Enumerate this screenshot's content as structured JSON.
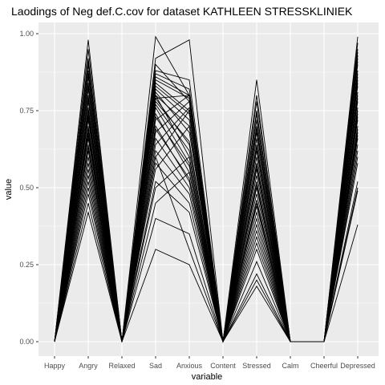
{
  "chart_data": {
    "type": "line",
    "title": "Laodings of Neg def.C.cov for dataset KATHLEEN STRESSKLINIEK",
    "xlabel": "variable",
    "ylabel": "value",
    "categories": [
      "Happy",
      "Angry",
      "Relaxed",
      "Sad",
      "Anxious",
      "Content",
      "Stressed",
      "Calm",
      "Cheerful",
      "Depressed"
    ],
    "ylim": [
      0,
      1
    ],
    "y_ticks": [
      0.0,
      0.25,
      0.5,
      0.75,
      1.0
    ],
    "y_tick_labels": [
      "0.00",
      "0.25",
      "0.50",
      "0.75",
      "1.00"
    ],
    "grid": true,
    "legend": "none",
    "colors": {
      "panel": "#ebebeb",
      "grid": "#ffffff",
      "line": "#000000",
      "tick_text": "#4d4d4d"
    },
    "series": [
      {
        "values": [
          0,
          0.98,
          0,
          0.99,
          0.8,
          0,
          0.85,
          0,
          0,
          0.99
        ]
      },
      {
        "values": [
          0,
          0.95,
          0,
          0.92,
          0.98,
          0,
          0.8,
          0,
          0,
          0.97
        ]
      },
      {
        "values": [
          0,
          0.92,
          0,
          0.88,
          0.85,
          0,
          0.75,
          0,
          0,
          0.95
        ]
      },
      {
        "values": [
          0,
          0.9,
          0,
          0.86,
          0.8,
          0,
          0.72,
          0,
          0,
          0.93
        ]
      },
      {
        "values": [
          0,
          0.88,
          0,
          0.9,
          0.78,
          0,
          0.7,
          0,
          0,
          0.92
        ]
      },
      {
        "values": [
          0,
          0.86,
          0,
          0.84,
          0.75,
          0,
          0.68,
          0,
          0,
          0.9
        ]
      },
      {
        "values": [
          0,
          0.84,
          0,
          0.82,
          0.72,
          0,
          0.66,
          0,
          0,
          0.88
        ]
      },
      {
        "values": [
          0,
          0.82,
          0,
          0.8,
          0.7,
          0,
          0.64,
          0,
          0,
          0.86
        ]
      },
      {
        "values": [
          0,
          0.8,
          0,
          0.79,
          0.8,
          0,
          0.62,
          0,
          0,
          0.85
        ]
      },
      {
        "values": [
          0,
          0.78,
          0,
          0.78,
          0.65,
          0,
          0.6,
          0,
          0,
          0.83
        ]
      },
      {
        "values": [
          0,
          0.76,
          0,
          0.77,
          0.62,
          0,
          0.58,
          0,
          0,
          0.81
        ]
      },
      {
        "values": [
          0,
          0.75,
          0,
          0.8,
          0.6,
          0,
          0.56,
          0,
          0,
          0.8
        ]
      },
      {
        "values": [
          0,
          0.73,
          0,
          0.76,
          0.58,
          0,
          0.54,
          0,
          0,
          0.78
        ]
      },
      {
        "values": [
          0,
          0.72,
          0,
          0.74,
          0.55,
          0,
          0.52,
          0,
          0,
          0.76
        ]
      },
      {
        "values": [
          0,
          0.7,
          0,
          0.72,
          0.8,
          0,
          0.5,
          0,
          0,
          0.75
        ]
      },
      {
        "values": [
          0,
          0.69,
          0,
          0.7,
          0.52,
          0,
          0.48,
          0,
          0,
          0.73
        ]
      },
      {
        "values": [
          0,
          0.67,
          0,
          0.68,
          0.78,
          0,
          0.46,
          0,
          0,
          0.72
        ]
      },
      {
        "values": [
          0,
          0.66,
          0,
          0.66,
          0.5,
          0,
          0.44,
          0,
          0,
          0.7
        ]
      },
      {
        "values": [
          0,
          0.64,
          0,
          0.64,
          0.76,
          0,
          0.42,
          0,
          0,
          0.69
        ]
      },
      {
        "values": [
          0,
          0.62,
          0,
          0.62,
          0.48,
          0,
          0.4,
          0,
          0,
          0.67
        ]
      },
      {
        "values": [
          0,
          0.6,
          0,
          0.6,
          0.75,
          0,
          0.38,
          0,
          0,
          0.66
        ]
      },
      {
        "values": [
          0,
          0.58,
          0,
          0.58,
          0.45,
          0,
          0.36,
          0,
          0,
          0.64
        ]
      },
      {
        "values": [
          0,
          0.56,
          0,
          0.56,
          0.7,
          0,
          0.34,
          0,
          0,
          0.62
        ]
      },
      {
        "values": [
          0,
          0.54,
          0,
          0.5,
          0.6,
          0,
          0.32,
          0,
          0,
          0.6
        ]
      },
      {
        "values": [
          0,
          0.52,
          0,
          0.45,
          0.55,
          0,
          0.3,
          0,
          0,
          0.58
        ]
      },
      {
        "values": [
          0,
          0.5,
          0,
          0.3,
          0.25,
          0,
          0.26,
          0,
          0,
          0.52
        ]
      },
      {
        "values": [
          0,
          0.48,
          0,
          0.52,
          0.42,
          0,
          0.22,
          0,
          0,
          0.5
        ]
      },
      {
        "values": [
          0,
          0.45,
          0,
          0.4,
          0.35,
          0,
          0.2,
          0,
          0,
          0.49
        ]
      },
      {
        "values": [
          0,
          0.42,
          0,
          0.6,
          0.3,
          0,
          0.18,
          0,
          0,
          0.38
        ]
      },
      {
        "values": [
          0,
          0.91,
          0,
          0.87,
          0.82,
          0,
          0.78,
          0,
          0,
          0.94
        ]
      },
      {
        "values": [
          0,
          0.87,
          0,
          0.85,
          0.79,
          0,
          0.74,
          0,
          0,
          0.91
        ]
      },
      {
        "values": [
          0,
          0.83,
          0,
          0.83,
          0.74,
          0,
          0.69,
          0,
          0,
          0.87
        ]
      },
      {
        "values": [
          0,
          0.79,
          0,
          0.81,
          0.68,
          0,
          0.63,
          0,
          0,
          0.84
        ]
      },
      {
        "values": [
          0,
          0.74,
          0,
          0.79,
          0.64,
          0,
          0.57,
          0,
          0,
          0.79
        ]
      },
      {
        "values": [
          0,
          0.68,
          0,
          0.73,
          0.57,
          0,
          0.51,
          0,
          0,
          0.74
        ]
      },
      {
        "values": [
          0,
          0.63,
          0,
          0.69,
          0.53,
          0,
          0.45,
          0,
          0,
          0.68
        ]
      }
    ]
  }
}
